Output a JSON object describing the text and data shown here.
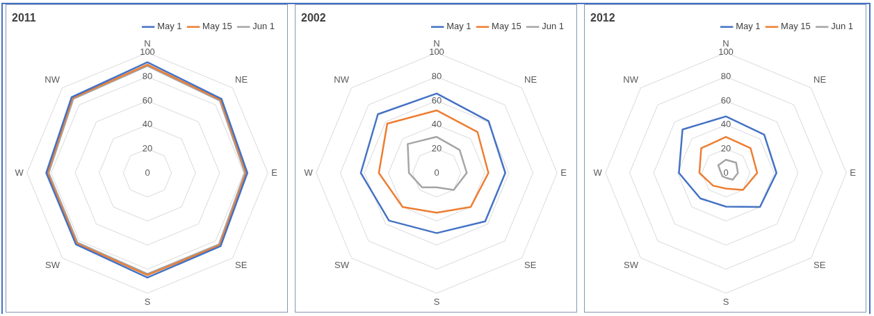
{
  "chart_data": [
    {
      "type": "radar",
      "title": "2011",
      "categories": [
        "N",
        "NE",
        "E",
        "SE",
        "S",
        "SW",
        "W",
        "NW"
      ],
      "ylim": [
        0,
        100
      ],
      "yticks": [
        0,
        20,
        40,
        60,
        80,
        100
      ],
      "grid": true,
      "legend": "top right",
      "marker": "none",
      "series": [
        {
          "name": "May 1",
          "color": "#4472c4",
          "values": [
            92,
            87,
            83,
            86,
            87,
            84,
            84,
            89
          ]
        },
        {
          "name": "May 15",
          "color": "#ed7d31",
          "values": [
            90,
            86,
            82,
            85,
            85,
            83,
            83,
            88
          ]
        },
        {
          "name": "Jun 1",
          "color": "#a5a5a5",
          "values": [
            89,
            85,
            81,
            84,
            84,
            82,
            82,
            87
          ]
        }
      ]
    },
    {
      "type": "radar",
      "title": "2002",
      "categories": [
        "N",
        "NE",
        "E",
        "SE",
        "S",
        "SW",
        "W",
        "NW"
      ],
      "ylim": [
        0,
        100
      ],
      "yticks": [
        0,
        20,
        40,
        60,
        80,
        100
      ],
      "grid": true,
      "legend": "top right",
      "marker": "none",
      "series": [
        {
          "name": "May 1",
          "color": "#4472c4",
          "values": [
            66,
            61,
            57,
            57,
            50,
            56,
            63,
            69
          ]
        },
        {
          "name": "May 15",
          "color": "#ed7d31",
          "values": [
            52,
            48,
            43,
            40,
            33,
            40,
            48,
            58
          ]
        },
        {
          "name": "Jun 1",
          "color": "#a5a5a5",
          "values": [
            30,
            27,
            25,
            20,
            12,
            17,
            23,
            34
          ]
        }
      ]
    },
    {
      "type": "radar",
      "title": "2012",
      "categories": [
        "N",
        "NE",
        "E",
        "SE",
        "S",
        "SW",
        "W",
        "NW"
      ],
      "ylim": [
        0,
        100
      ],
      "yticks": [
        0,
        20,
        40,
        60,
        80,
        100
      ],
      "grid": true,
      "legend": "top right",
      "marker": "none",
      "series": [
        {
          "name": "May 1",
          "color": "#4472c4",
          "values": [
            47,
            45,
            42,
            40,
            28,
            30,
            39,
            51
          ]
        },
        {
          "name": "May 15",
          "color": "#ed7d31",
          "values": [
            30,
            29,
            26,
            20,
            13,
            15,
            22,
            29
          ]
        },
        {
          "name": "Jun 1",
          "color": "#a5a5a5",
          "values": [
            11,
            12,
            10,
            8,
            4,
            4,
            4,
            9
          ]
        }
      ]
    }
  ]
}
